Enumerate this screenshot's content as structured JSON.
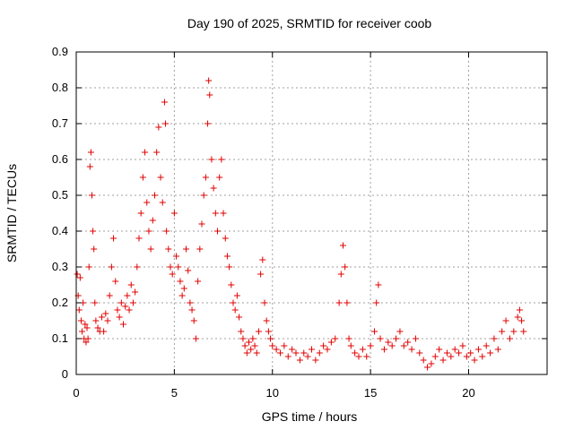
{
  "chart_data": {
    "type": "scatter",
    "title": "Day 190 of 2025, SRMTID for receiver coob",
    "xlabel": "GPS time / hours",
    "ylabel": "SRMTID / TECUs",
    "xlim": [
      0,
      24
    ],
    "ylim": [
      0,
      0.9
    ],
    "xticks": [
      0,
      5,
      10,
      15,
      20
    ],
    "xtick_labels": [
      "0",
      "5",
      "10",
      "15",
      "20"
    ],
    "yticks": [
      0,
      0.1,
      0.2,
      0.3,
      0.4,
      0.5,
      0.6,
      0.7,
      0.8,
      0.9
    ],
    "ytick_labels": [
      "0",
      "0.1",
      "0.2",
      "0.3",
      "0.4",
      "0.5",
      "0.6",
      "0.7",
      "0.8",
      "0.9"
    ],
    "grid": true,
    "marker": "plus",
    "color": "#e00000",
    "series": [
      {
        "name": "SRMTID",
        "points": [
          [
            0.05,
            0.28
          ],
          [
            0.1,
            0.22
          ],
          [
            0.15,
            0.18
          ],
          [
            0.2,
            0.27
          ],
          [
            0.25,
            0.15
          ],
          [
            0.3,
            0.12
          ],
          [
            0.35,
            0.2
          ],
          [
            0.4,
            0.1
          ],
          [
            0.45,
            0.14
          ],
          [
            0.5,
            0.09
          ],
          [
            0.55,
            0.13
          ],
          [
            0.6,
            0.1
          ],
          [
            0.65,
            0.3
          ],
          [
            0.7,
            0.58
          ],
          [
            0.75,
            0.62
          ],
          [
            0.8,
            0.5
          ],
          [
            0.85,
            0.4
          ],
          [
            0.9,
            0.35
          ],
          [
            0.95,
            0.2
          ],
          [
            1.0,
            0.15
          ],
          [
            1.1,
            0.13
          ],
          [
            1.2,
            0.12
          ],
          [
            1.3,
            0.16
          ],
          [
            1.4,
            0.12
          ],
          [
            1.5,
            0.17
          ],
          [
            1.6,
            0.15
          ],
          [
            1.7,
            0.22
          ],
          [
            1.8,
            0.3
          ],
          [
            1.9,
            0.38
          ],
          [
            2.0,
            0.26
          ],
          [
            2.1,
            0.18
          ],
          [
            2.2,
            0.16
          ],
          [
            2.3,
            0.2
          ],
          [
            2.4,
            0.14
          ],
          [
            2.5,
            0.19
          ],
          [
            2.6,
            0.22
          ],
          [
            2.7,
            0.18
          ],
          [
            2.8,
            0.25
          ],
          [
            2.9,
            0.2
          ],
          [
            3.0,
            0.23
          ],
          [
            3.1,
            0.3
          ],
          [
            3.2,
            0.38
          ],
          [
            3.3,
            0.45
          ],
          [
            3.4,
            0.55
          ],
          [
            3.5,
            0.62
          ],
          [
            3.6,
            0.48
          ],
          [
            3.7,
            0.4
          ],
          [
            3.8,
            0.35
          ],
          [
            3.9,
            0.43
          ],
          [
            4.0,
            0.5
          ],
          [
            4.1,
            0.62
          ],
          [
            4.2,
            0.69
          ],
          [
            4.3,
            0.55
          ],
          [
            4.4,
            0.48
          ],
          [
            4.5,
            0.76
          ],
          [
            4.55,
            0.7
          ],
          [
            4.6,
            0.4
          ],
          [
            4.7,
            0.35
          ],
          [
            4.8,
            0.3
          ],
          [
            4.9,
            0.28
          ],
          [
            5.0,
            0.45
          ],
          [
            5.1,
            0.33
          ],
          [
            5.2,
            0.3
          ],
          [
            5.3,
            0.26
          ],
          [
            5.4,
            0.22
          ],
          [
            5.5,
            0.24
          ],
          [
            5.6,
            0.35
          ],
          [
            5.7,
            0.29
          ],
          [
            5.8,
            0.2
          ],
          [
            5.9,
            0.18
          ],
          [
            6.0,
            0.15
          ],
          [
            6.1,
            0.1
          ],
          [
            6.2,
            0.26
          ],
          [
            6.3,
            0.35
          ],
          [
            6.4,
            0.42
          ],
          [
            6.5,
            0.5
          ],
          [
            6.6,
            0.55
          ],
          [
            6.7,
            0.7
          ],
          [
            6.75,
            0.82
          ],
          [
            6.8,
            0.78
          ],
          [
            6.9,
            0.6
          ],
          [
            7.0,
            0.52
          ],
          [
            7.1,
            0.45
          ],
          [
            7.2,
            0.4
          ],
          [
            7.3,
            0.55
          ],
          [
            7.4,
            0.6
          ],
          [
            7.5,
            0.45
          ],
          [
            7.6,
            0.38
          ],
          [
            7.7,
            0.33
          ],
          [
            7.8,
            0.3
          ],
          [
            7.9,
            0.25
          ],
          [
            8.0,
            0.2
          ],
          [
            8.1,
            0.18
          ],
          [
            8.2,
            0.22
          ],
          [
            8.3,
            0.16
          ],
          [
            8.4,
            0.12
          ],
          [
            8.5,
            0.1
          ],
          [
            8.6,
            0.08
          ],
          [
            8.7,
            0.06
          ],
          [
            8.8,
            0.09
          ],
          [
            8.9,
            0.07
          ],
          [
            9.0,
            0.1
          ],
          [
            9.1,
            0.08
          ],
          [
            9.2,
            0.06
          ],
          [
            9.3,
            0.12
          ],
          [
            9.4,
            0.28
          ],
          [
            9.5,
            0.32
          ],
          [
            9.6,
            0.2
          ],
          [
            9.7,
            0.15
          ],
          [
            9.8,
            0.12
          ],
          [
            9.9,
            0.1
          ],
          [
            10.0,
            0.08
          ],
          [
            10.2,
            0.07
          ],
          [
            10.4,
            0.06
          ],
          [
            10.6,
            0.08
          ],
          [
            10.8,
            0.05
          ],
          [
            11.0,
            0.07
          ],
          [
            11.2,
            0.06
          ],
          [
            11.4,
            0.04
          ],
          [
            11.6,
            0.06
          ],
          [
            11.8,
            0.05
          ],
          [
            12.0,
            0.07
          ],
          [
            12.2,
            0.04
          ],
          [
            12.4,
            0.06
          ],
          [
            12.6,
            0.08
          ],
          [
            12.8,
            0.07
          ],
          [
            13.0,
            0.09
          ],
          [
            13.2,
            0.1
          ],
          [
            13.4,
            0.2
          ],
          [
            13.5,
            0.28
          ],
          [
            13.6,
            0.36
          ],
          [
            13.7,
            0.3
          ],
          [
            13.8,
            0.2
          ],
          [
            13.9,
            0.1
          ],
          [
            14.0,
            0.08
          ],
          [
            14.2,
            0.06
          ],
          [
            14.4,
            0.05
          ],
          [
            14.6,
            0.07
          ],
          [
            14.8,
            0.05
          ],
          [
            15.0,
            0.08
          ],
          [
            15.2,
            0.12
          ],
          [
            15.3,
            0.2
          ],
          [
            15.4,
            0.25
          ],
          [
            15.5,
            0.1
          ],
          [
            15.7,
            0.07
          ],
          [
            15.9,
            0.09
          ],
          [
            16.1,
            0.08
          ],
          [
            16.3,
            0.1
          ],
          [
            16.5,
            0.12
          ],
          [
            16.7,
            0.08
          ],
          [
            16.9,
            0.09
          ],
          [
            17.1,
            0.07
          ],
          [
            17.3,
            0.1
          ],
          [
            17.5,
            0.06
          ],
          [
            17.7,
            0.04
          ],
          [
            17.9,
            0.02
          ],
          [
            18.1,
            0.03
          ],
          [
            18.3,
            0.05
          ],
          [
            18.5,
            0.07
          ],
          [
            18.7,
            0.04
          ],
          [
            18.9,
            0.06
          ],
          [
            19.1,
            0.05
          ],
          [
            19.3,
            0.07
          ],
          [
            19.5,
            0.06
          ],
          [
            19.7,
            0.08
          ],
          [
            19.9,
            0.05
          ],
          [
            20.1,
            0.06
          ],
          [
            20.3,
            0.04
          ],
          [
            20.5,
            0.07
          ],
          [
            20.7,
            0.05
          ],
          [
            20.9,
            0.08
          ],
          [
            21.1,
            0.06
          ],
          [
            21.3,
            0.1
          ],
          [
            21.5,
            0.07
          ],
          [
            21.7,
            0.12
          ],
          [
            21.9,
            0.15
          ],
          [
            22.1,
            0.1
          ],
          [
            22.3,
            0.12
          ],
          [
            22.5,
            0.16
          ],
          [
            22.6,
            0.18
          ],
          [
            22.7,
            0.15
          ],
          [
            22.8,
            0.12
          ]
        ]
      }
    ]
  }
}
